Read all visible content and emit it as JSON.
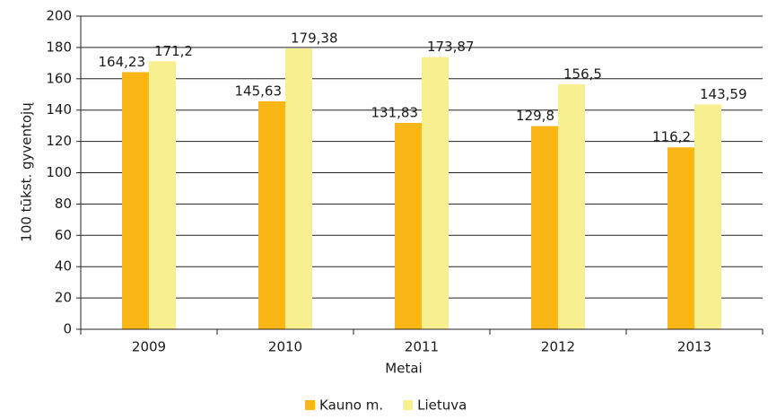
{
  "chart_data": {
    "type": "bar",
    "categories": [
      "2009",
      "2010",
      "2011",
      "2012",
      "2013"
    ],
    "series": [
      {
        "name": "Kauno m.",
        "color": "#f9b616",
        "values": [
          164.23,
          145.63,
          131.83,
          129.8,
          116.2
        ],
        "value_labels": [
          "164,23",
          "145,63",
          "131,83",
          "129,8",
          "116,2"
        ]
      },
      {
        "name": "Lietuva",
        "color": "#f8f08e",
        "values": [
          171.2,
          179.38,
          173.87,
          156.5,
          143.59
        ],
        "value_labels": [
          "171,2",
          "179,38",
          "173,87",
          "156,5",
          "143,59"
        ]
      }
    ],
    "xlabel": "Metai",
    "ylabel": "100 tūkst. gyventojų",
    "ylim": [
      0,
      200
    ],
    "yticks": [
      0,
      20,
      40,
      60,
      80,
      100,
      120,
      140,
      160,
      180,
      200
    ],
    "grid": true,
    "legend": "bottom"
  }
}
